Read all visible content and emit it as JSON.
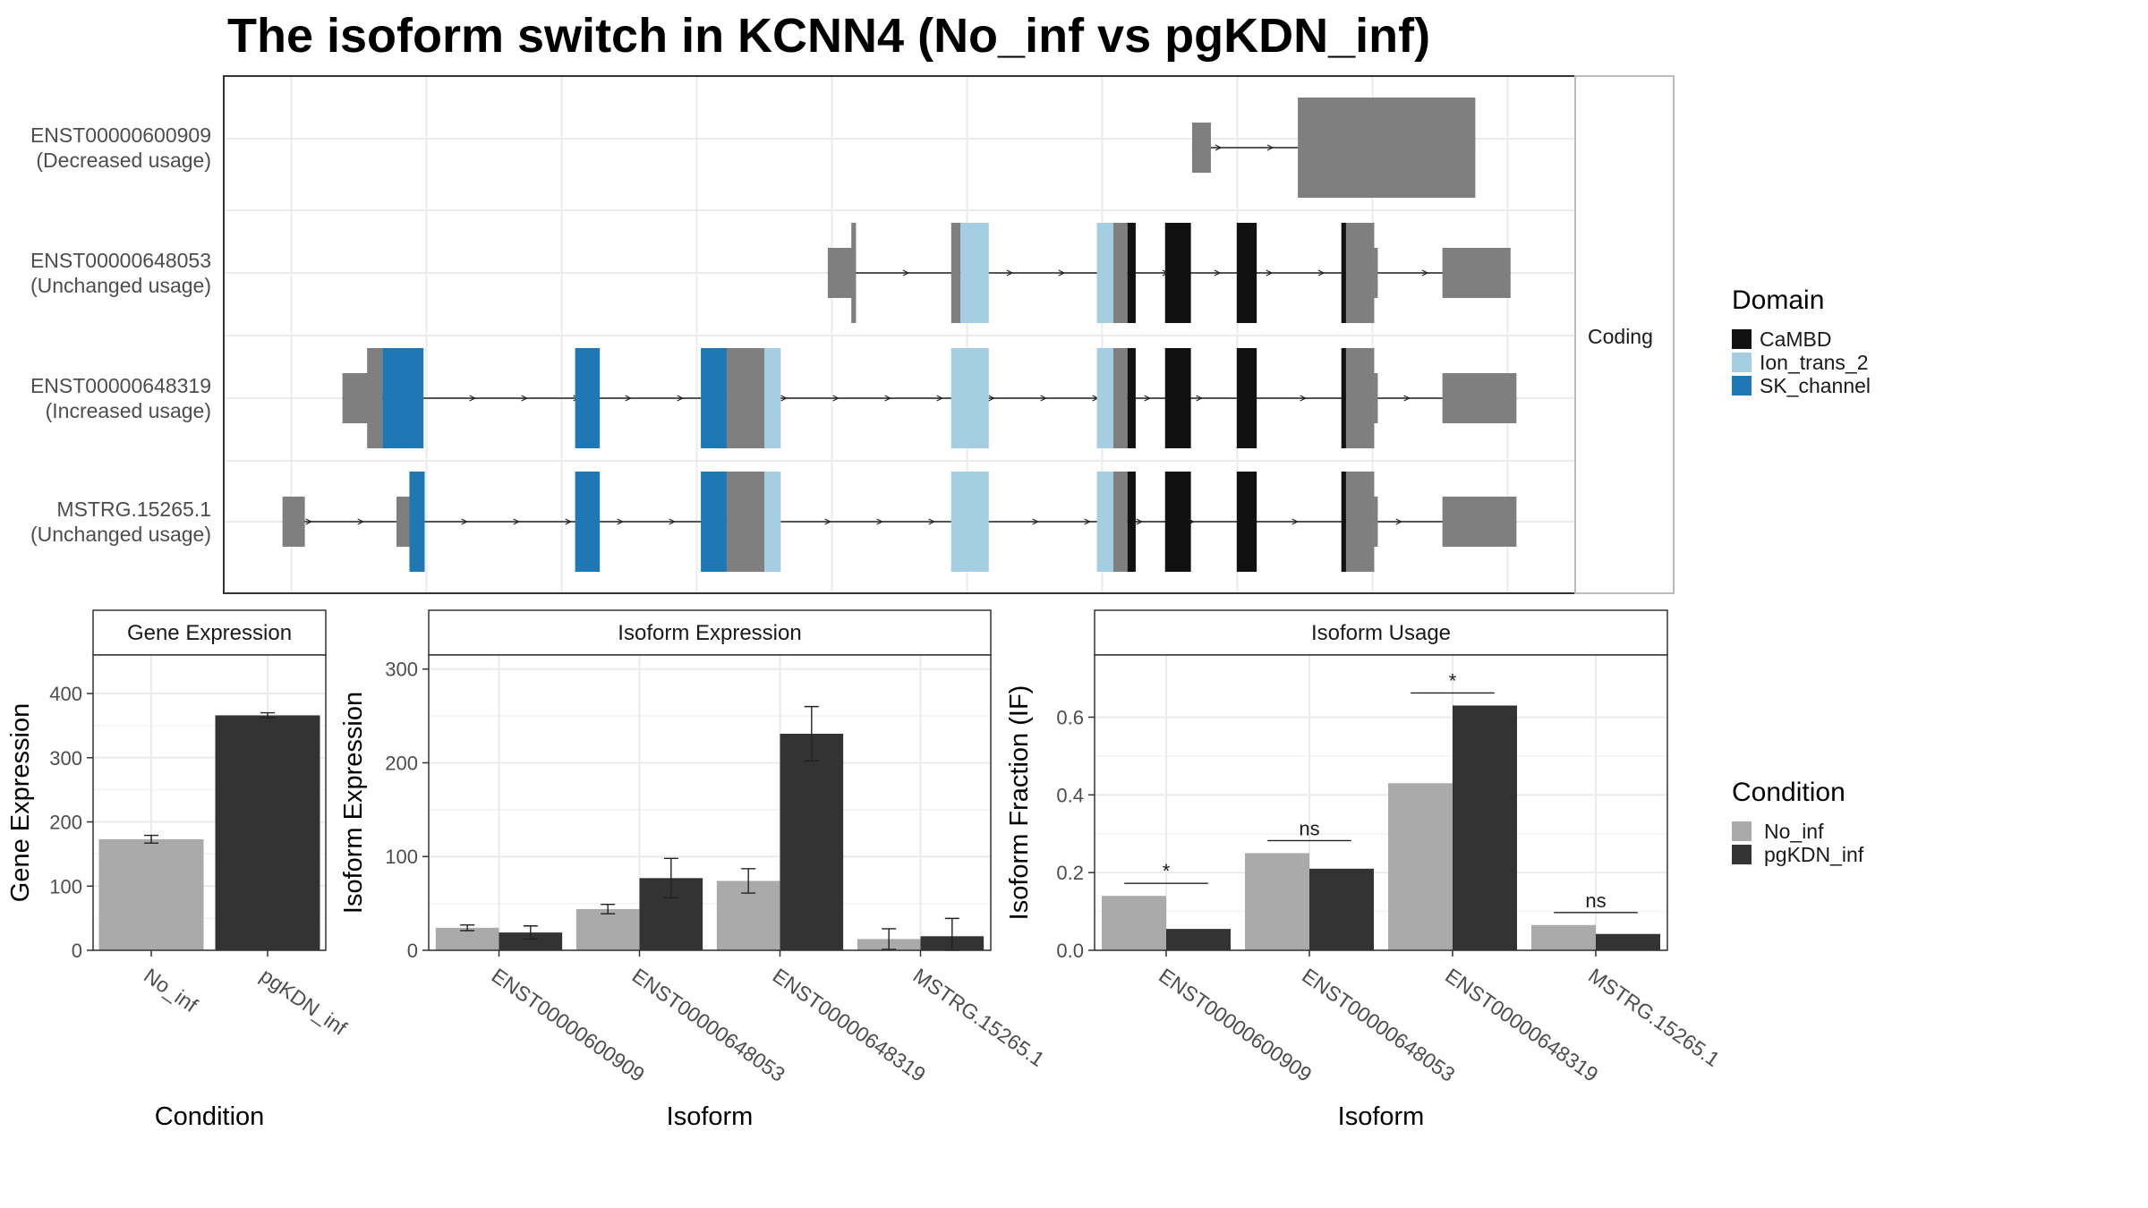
{
  "title": "The isoform switch in KCNN4 (No_inf vs pgKDN_inf)",
  "colors": {
    "noncoding_exon": "#7f7f7f",
    "no_inf": "#aaaaaa",
    "pgkdn_inf": "#333333",
    "grid": "#ebebeb",
    "panel_border": "#333333",
    "strip_border": "#bbbbbb"
  },
  "legend_domain": {
    "title": "Domain",
    "items": [
      {
        "label": "CaMBD",
        "color": "#111111"
      },
      {
        "label": "Ion_trans_2",
        "color": "#a6cee3"
      },
      {
        "label": "SK_channel",
        "color": "#1f78b4"
      }
    ]
  },
  "legend_condition": {
    "title": "Condition",
    "items": [
      {
        "label": "No_inf",
        "color": "#aaaaaa"
      },
      {
        "label": "pgKDN_inf",
        "color": "#333333"
      }
    ]
  },
  "chart_data": [
    {
      "type": "gene_structure",
      "facet_label": "Coding",
      "isoforms": [
        {
          "id": "ENST00000600909",
          "usage": "(Decreased usage)",
          "exons": [
            {
              "start": 0.824,
              "end": 0.84,
              "kind": "utr"
            },
            {
              "start": 0.914,
              "end": 1.065,
              "kind": "cds"
            },
            {
              "start": 0.964,
              "end": 1.013,
              "kind": "cds"
            }
          ]
        },
        {
          "id": "ENST00000648053",
          "usage": "(Unchanged usage)",
          "exons": [
            {
              "start": 0.514,
              "end": 0.538,
              "kind": "utr"
            },
            {
              "start": 0.534,
              "end": 0.538,
              "kind": "cds"
            },
            {
              "start": 0.619,
              "end": 0.627,
              "kind": "cds"
            },
            {
              "start": 0.627,
              "end": 0.651,
              "kind": "Ion_trans_2"
            },
            {
              "start": 0.743,
              "end": 0.757,
              "kind": "Ion_trans_2"
            },
            {
              "start": 0.757,
              "end": 0.769,
              "kind": "cds"
            },
            {
              "start": 0.769,
              "end": 0.776,
              "kind": "CaMBD"
            },
            {
              "start": 0.801,
              "end": 0.823,
              "kind": "CaMBD"
            },
            {
              "start": 0.862,
              "end": 0.879,
              "kind": "CaMBD"
            },
            {
              "start": 0.951,
              "end": 0.955,
              "kind": "CaMBD"
            },
            {
              "start": 0.955,
              "end": 0.979,
              "kind": "cds"
            },
            {
              "start": 0.979,
              "end": 0.982,
              "kind": "utr"
            },
            {
              "start": 1.037,
              "end": 1.095,
              "kind": "utr"
            }
          ]
        },
        {
          "id": "ENST00000648319",
          "usage": "(Increased usage)",
          "exons": [
            {
              "start": 0.101,
              "end": 0.125,
              "kind": "utr"
            },
            {
              "start": 0.122,
              "end": 0.135,
              "kind": "cds"
            },
            {
              "start": 0.135,
              "end": 0.17,
              "kind": "SK_channel"
            },
            {
              "start": 0.299,
              "end": 0.32,
              "kind": "SK_channel"
            },
            {
              "start": 0.406,
              "end": 0.428,
              "kind": "SK_channel"
            },
            {
              "start": 0.428,
              "end": 0.46,
              "kind": "cds"
            },
            {
              "start": 0.46,
              "end": 0.474,
              "kind": "Ion_trans_2"
            },
            {
              "start": 0.619,
              "end": 0.651,
              "kind": "Ion_trans_2"
            },
            {
              "start": 0.743,
              "end": 0.757,
              "kind": "Ion_trans_2"
            },
            {
              "start": 0.757,
              "end": 0.769,
              "kind": "cds"
            },
            {
              "start": 0.769,
              "end": 0.776,
              "kind": "CaMBD"
            },
            {
              "start": 0.801,
              "end": 0.823,
              "kind": "CaMBD"
            },
            {
              "start": 0.862,
              "end": 0.879,
              "kind": "CaMBD"
            },
            {
              "start": 0.951,
              "end": 0.955,
              "kind": "CaMBD"
            },
            {
              "start": 0.955,
              "end": 0.979,
              "kind": "cds"
            },
            {
              "start": 0.979,
              "end": 0.982,
              "kind": "utr"
            },
            {
              "start": 1.037,
              "end": 1.1,
              "kind": "utr"
            }
          ]
        },
        {
          "id": "MSTRG.15265.1",
          "usage": "(Unchanged usage)",
          "exons": [
            {
              "start": 0.05,
              "end": 0.069,
              "kind": "utr"
            },
            {
              "start": 0.147,
              "end": 0.162,
              "kind": "utr"
            },
            {
              "start": 0.158,
              "end": 0.171,
              "kind": "SK_channel"
            },
            {
              "start": 0.299,
              "end": 0.32,
              "kind": "SK_channel"
            },
            {
              "start": 0.406,
              "end": 0.428,
              "kind": "SK_channel"
            },
            {
              "start": 0.428,
              "end": 0.46,
              "kind": "cds"
            },
            {
              "start": 0.46,
              "end": 0.474,
              "kind": "Ion_trans_2"
            },
            {
              "start": 0.619,
              "end": 0.651,
              "kind": "Ion_trans_2"
            },
            {
              "start": 0.743,
              "end": 0.757,
              "kind": "Ion_trans_2"
            },
            {
              "start": 0.757,
              "end": 0.769,
              "kind": "cds"
            },
            {
              "start": 0.769,
              "end": 0.776,
              "kind": "CaMBD"
            },
            {
              "start": 0.801,
              "end": 0.823,
              "kind": "CaMBD"
            },
            {
              "start": 0.862,
              "end": 0.879,
              "kind": "CaMBD"
            },
            {
              "start": 0.951,
              "end": 0.955,
              "kind": "CaMBD"
            },
            {
              "start": 0.955,
              "end": 0.979,
              "kind": "cds"
            },
            {
              "start": 0.979,
              "end": 0.982,
              "kind": "utr"
            },
            {
              "start": 1.037,
              "end": 1.1,
              "kind": "utr"
            }
          ]
        }
      ]
    },
    {
      "type": "bar",
      "strip": "Gene Expression",
      "xlabel": "Condition",
      "ylabel": "Gene Expression",
      "categories": [
        "No_inf",
        "pgKDN_inf"
      ],
      "values": [
        173,
        366
      ],
      "errors": [
        6,
        4
      ],
      "ylim": [
        0,
        460
      ],
      "yticks": [
        0,
        100,
        200,
        300,
        400
      ]
    },
    {
      "type": "bar",
      "strip": "Isoform Expression",
      "xlabel": "Isoform",
      "ylabel": "Isoform Expression",
      "categories": [
        "ENST00000600909",
        "ENST00000648053",
        "ENST00000648319",
        "MSTRG.15265.1"
      ],
      "series": [
        {
          "name": "No_inf",
          "values": [
            24,
            44,
            74,
            12
          ],
          "errors": [
            3,
            5,
            13,
            11
          ]
        },
        {
          "name": "pgKDN_inf",
          "values": [
            19,
            77,
            231,
            15
          ],
          "errors": [
            7,
            21,
            29,
            19
          ]
        }
      ],
      "ylim": [
        0,
        315
      ],
      "yticks": [
        0,
        100,
        200,
        300
      ]
    },
    {
      "type": "bar",
      "strip": "Isoform Usage",
      "xlabel": "Isoform",
      "ylabel": "Isoform Fraction (IF)",
      "categories": [
        "ENST00000600909",
        "ENST00000648053",
        "ENST00000648319",
        "MSTRG.15265.1"
      ],
      "series": [
        {
          "name": "No_inf",
          "values": [
            0.14,
            0.25,
            0.43,
            0.065
          ]
        },
        {
          "name": "pgKDN_inf",
          "values": [
            0.055,
            0.21,
            0.63,
            0.042
          ]
        }
      ],
      "significance": [
        "*",
        "ns",
        "*",
        "ns"
      ],
      "ylim": [
        0,
        0.76
      ],
      "yticks": [
        0.0,
        0.2,
        0.4,
        0.6
      ],
      "ytick_labels": [
        "0.0",
        "0.2",
        "0.4",
        "0.6"
      ]
    }
  ]
}
